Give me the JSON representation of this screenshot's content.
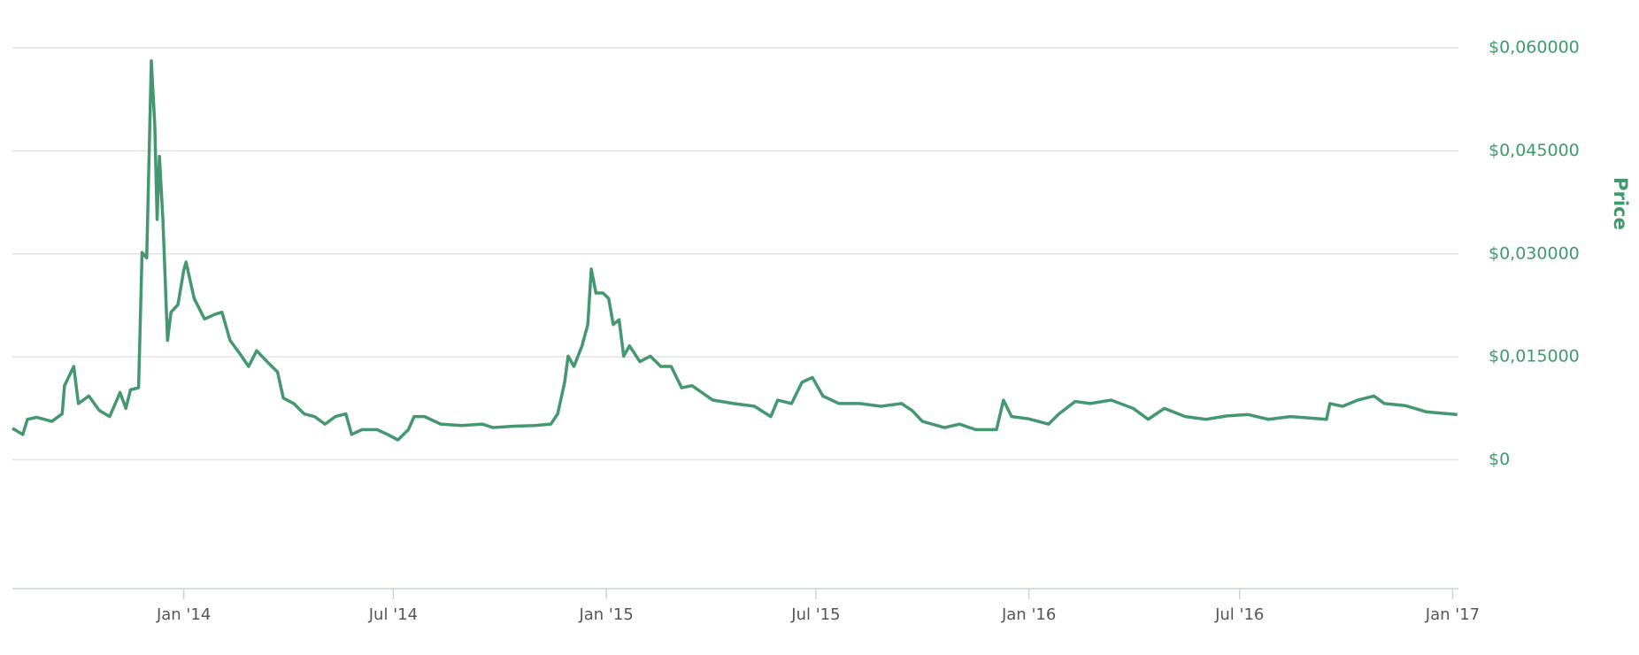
{
  "chart_data": {
    "type": "line",
    "ylabel": "Price",
    "x": [
      "2013-08-06",
      "2013-08-15",
      "2013-08-19",
      "2013-08-27",
      "2013-09-09",
      "2013-09-18",
      "2013-09-20",
      "2013-09-28",
      "2013-10-02",
      "2013-10-11",
      "2013-10-20",
      "2013-10-29",
      "2013-11-07",
      "2013-11-12",
      "2013-11-16",
      "2013-11-23",
      "2013-11-26",
      "2013-11-30",
      "2013-12-04",
      "2013-12-07",
      "2013-12-09",
      "2013-12-11",
      "2013-12-14",
      "2013-12-18",
      "2013-12-21",
      "2013-12-27",
      "2014-01-01",
      "2014-01-03",
      "2014-01-10",
      "2014-01-19",
      "2014-01-28",
      "2014-02-03",
      "2014-02-10",
      "2014-02-20",
      "2014-02-26",
      "2014-03-05",
      "2014-03-14",
      "2014-03-23",
      "2014-03-28",
      "2014-04-06",
      "2014-04-15",
      "2014-04-24",
      "2014-05-03",
      "2014-05-12",
      "2014-05-21",
      "2014-05-26",
      "2014-06-04",
      "2014-06-17",
      "2014-06-26",
      "2014-07-05",
      "2014-07-14",
      "2014-07-19",
      "2014-07-28",
      "2014-08-11",
      "2014-08-29",
      "2014-09-16",
      "2014-09-25",
      "2014-10-13",
      "2014-10-31",
      "2014-11-14",
      "2014-11-20",
      "2014-11-26",
      "2014-11-29",
      "2014-12-04",
      "2014-12-11",
      "2014-12-16",
      "2014-12-19",
      "2014-12-23",
      "2014-12-29",
      "2015-01-03",
      "2015-01-07",
      "2015-01-12",
      "2015-01-16",
      "2015-01-21",
      "2015-01-30",
      "2015-02-08",
      "2015-02-17",
      "2015-02-26",
      "2015-03-07",
      "2015-03-16",
      "2015-04-03",
      "2015-04-21",
      "2015-05-09",
      "2015-05-23",
      "2015-05-29",
      "2015-06-10",
      "2015-06-19",
      "2015-06-28",
      "2015-07-07",
      "2015-07-21",
      "2015-08-08",
      "2015-08-26",
      "2015-09-13",
      "2015-09-22",
      "2015-10-01",
      "2015-10-20",
      "2015-11-02",
      "2015-11-16",
      "2015-12-04",
      "2015-12-10",
      "2015-12-17",
      "2015-12-31",
      "2016-01-18",
      "2016-01-27",
      "2016-02-10",
      "2016-02-23",
      "2016-03-12",
      "2016-03-31",
      "2016-04-13",
      "2016-04-27",
      "2016-05-15",
      "2016-06-02",
      "2016-06-20",
      "2016-07-08",
      "2016-07-26",
      "2016-08-14",
      "2016-09-14",
      "2016-09-17",
      "2016-09-28",
      "2016-10-11",
      "2016-10-25",
      "2016-11-03",
      "2016-11-21",
      "2016-12-09",
      "2017-01-05"
    ],
    "series": [
      {
        "name": "Price",
        "color": "#44976f",
        "values": [
          0.0046,
          0.0037,
          0.0059,
          0.0062,
          0.0056,
          0.0067,
          0.0108,
          0.0136,
          0.0082,
          0.0093,
          0.0072,
          0.0063,
          0.0098,
          0.0075,
          0.0102,
          0.0105,
          0.0302,
          0.0294,
          0.0581,
          0.0487,
          0.035,
          0.0442,
          0.035,
          0.0174,
          0.0215,
          0.0226,
          0.0276,
          0.0288,
          0.0235,
          0.0205,
          0.0212,
          0.0215,
          0.0174,
          0.0151,
          0.0136,
          0.0159,
          0.0143,
          0.0128,
          0.009,
          0.0082,
          0.0067,
          0.0063,
          0.0052,
          0.0063,
          0.0067,
          0.0037,
          0.0044,
          0.0044,
          0.0037,
          0.0029,
          0.0044,
          0.0063,
          0.0063,
          0.0052,
          0.005,
          0.0052,
          0.0047,
          0.0049,
          0.005,
          0.0052,
          0.0067,
          0.0113,
          0.0151,
          0.0136,
          0.0166,
          0.0197,
          0.0278,
          0.0243,
          0.0243,
          0.0235,
          0.0197,
          0.0204,
          0.0151,
          0.0166,
          0.0143,
          0.0151,
          0.0136,
          0.0136,
          0.0105,
          0.0108,
          0.0087,
          0.0082,
          0.0078,
          0.0063,
          0.0087,
          0.0082,
          0.0113,
          0.012,
          0.0093,
          0.0082,
          0.0082,
          0.0078,
          0.0082,
          0.0072,
          0.0056,
          0.0047,
          0.0052,
          0.0044,
          0.0044,
          0.0087,
          0.0063,
          0.006,
          0.0052,
          0.0067,
          0.0085,
          0.0082,
          0.0087,
          0.0075,
          0.0059,
          0.0075,
          0.0063,
          0.0059,
          0.0064,
          0.0066,
          0.0059,
          0.0063,
          0.0059,
          0.0082,
          0.0078,
          0.0087,
          0.0093,
          0.0082,
          0.0079,
          0.007,
          0.0066
        ]
      }
    ],
    "xlim": [
      "2013-08-06",
      "2017-01-06"
    ],
    "xticks": [
      {
        "value": "2014-01-01",
        "label": "Jan '14"
      },
      {
        "value": "2014-07-01",
        "label": "Jul '14"
      },
      {
        "value": "2015-01-01",
        "label": "Jan '15"
      },
      {
        "value": "2015-07-01",
        "label": "Jul '15"
      },
      {
        "value": "2016-01-01",
        "label": "Jan '16"
      },
      {
        "value": "2016-07-01",
        "label": "Jul '16"
      },
      {
        "value": "2017-01-01",
        "label": "Jan '17"
      }
    ],
    "ylim": [
      -0.01875,
      0.06
    ],
    "yticks": [
      {
        "value": 0,
        "label": "$0"
      },
      {
        "value": 0.015,
        "label": "$0,015000"
      },
      {
        "value": 0.03,
        "label": "$0,030000"
      },
      {
        "value": 0.045,
        "label": "$0,045000"
      },
      {
        "value": 0.06,
        "label": "$0,060000"
      }
    ],
    "grid": true
  }
}
